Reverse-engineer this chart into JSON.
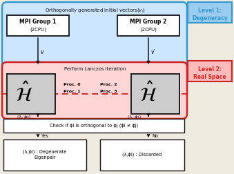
{
  "bg_color": "#f0ebe0",
  "blue": "#3399cc",
  "red": "#cc2222",
  "black": "#111111",
  "gray_box": "#cccccc",
  "white": "#ffffff",
  "level1_label": "Level 1:\nDegeneracy",
  "level2_label": "Level 2:\nReal Space",
  "top_text": "Orthogonally generated initial vectors($v_i$)",
  "mpi1_line1": "MPI Group 1",
  "mpi1_line2": "(2CPU)",
  "mpi2_line1": "MPI Group 2",
  "mpi2_line2": "(2CPU)",
  "lanczos_text": "Perform Lanczos iteration",
  "proc0": "Proc. 0",
  "proc1": "Proc. 1",
  "proc2": "Proc. 2",
  "proc3": "Proc. 3",
  "v_text": "v",
  "vp_text": "v′",
  "lp0_text": "(λ, ϕ₀)",
  "lp1_text": "(λ, ϕ₁)",
  "check_text": "Check if ϕi is orthogonal to ϕj (ϕi ≠ ϕj)",
  "yes_text": "Yes",
  "no_text": "No",
  "degen_text": "(λ,ϕi) : Degenerate\nEigenpair",
  "discard_text": "(λ,ϕi) : Discarded"
}
